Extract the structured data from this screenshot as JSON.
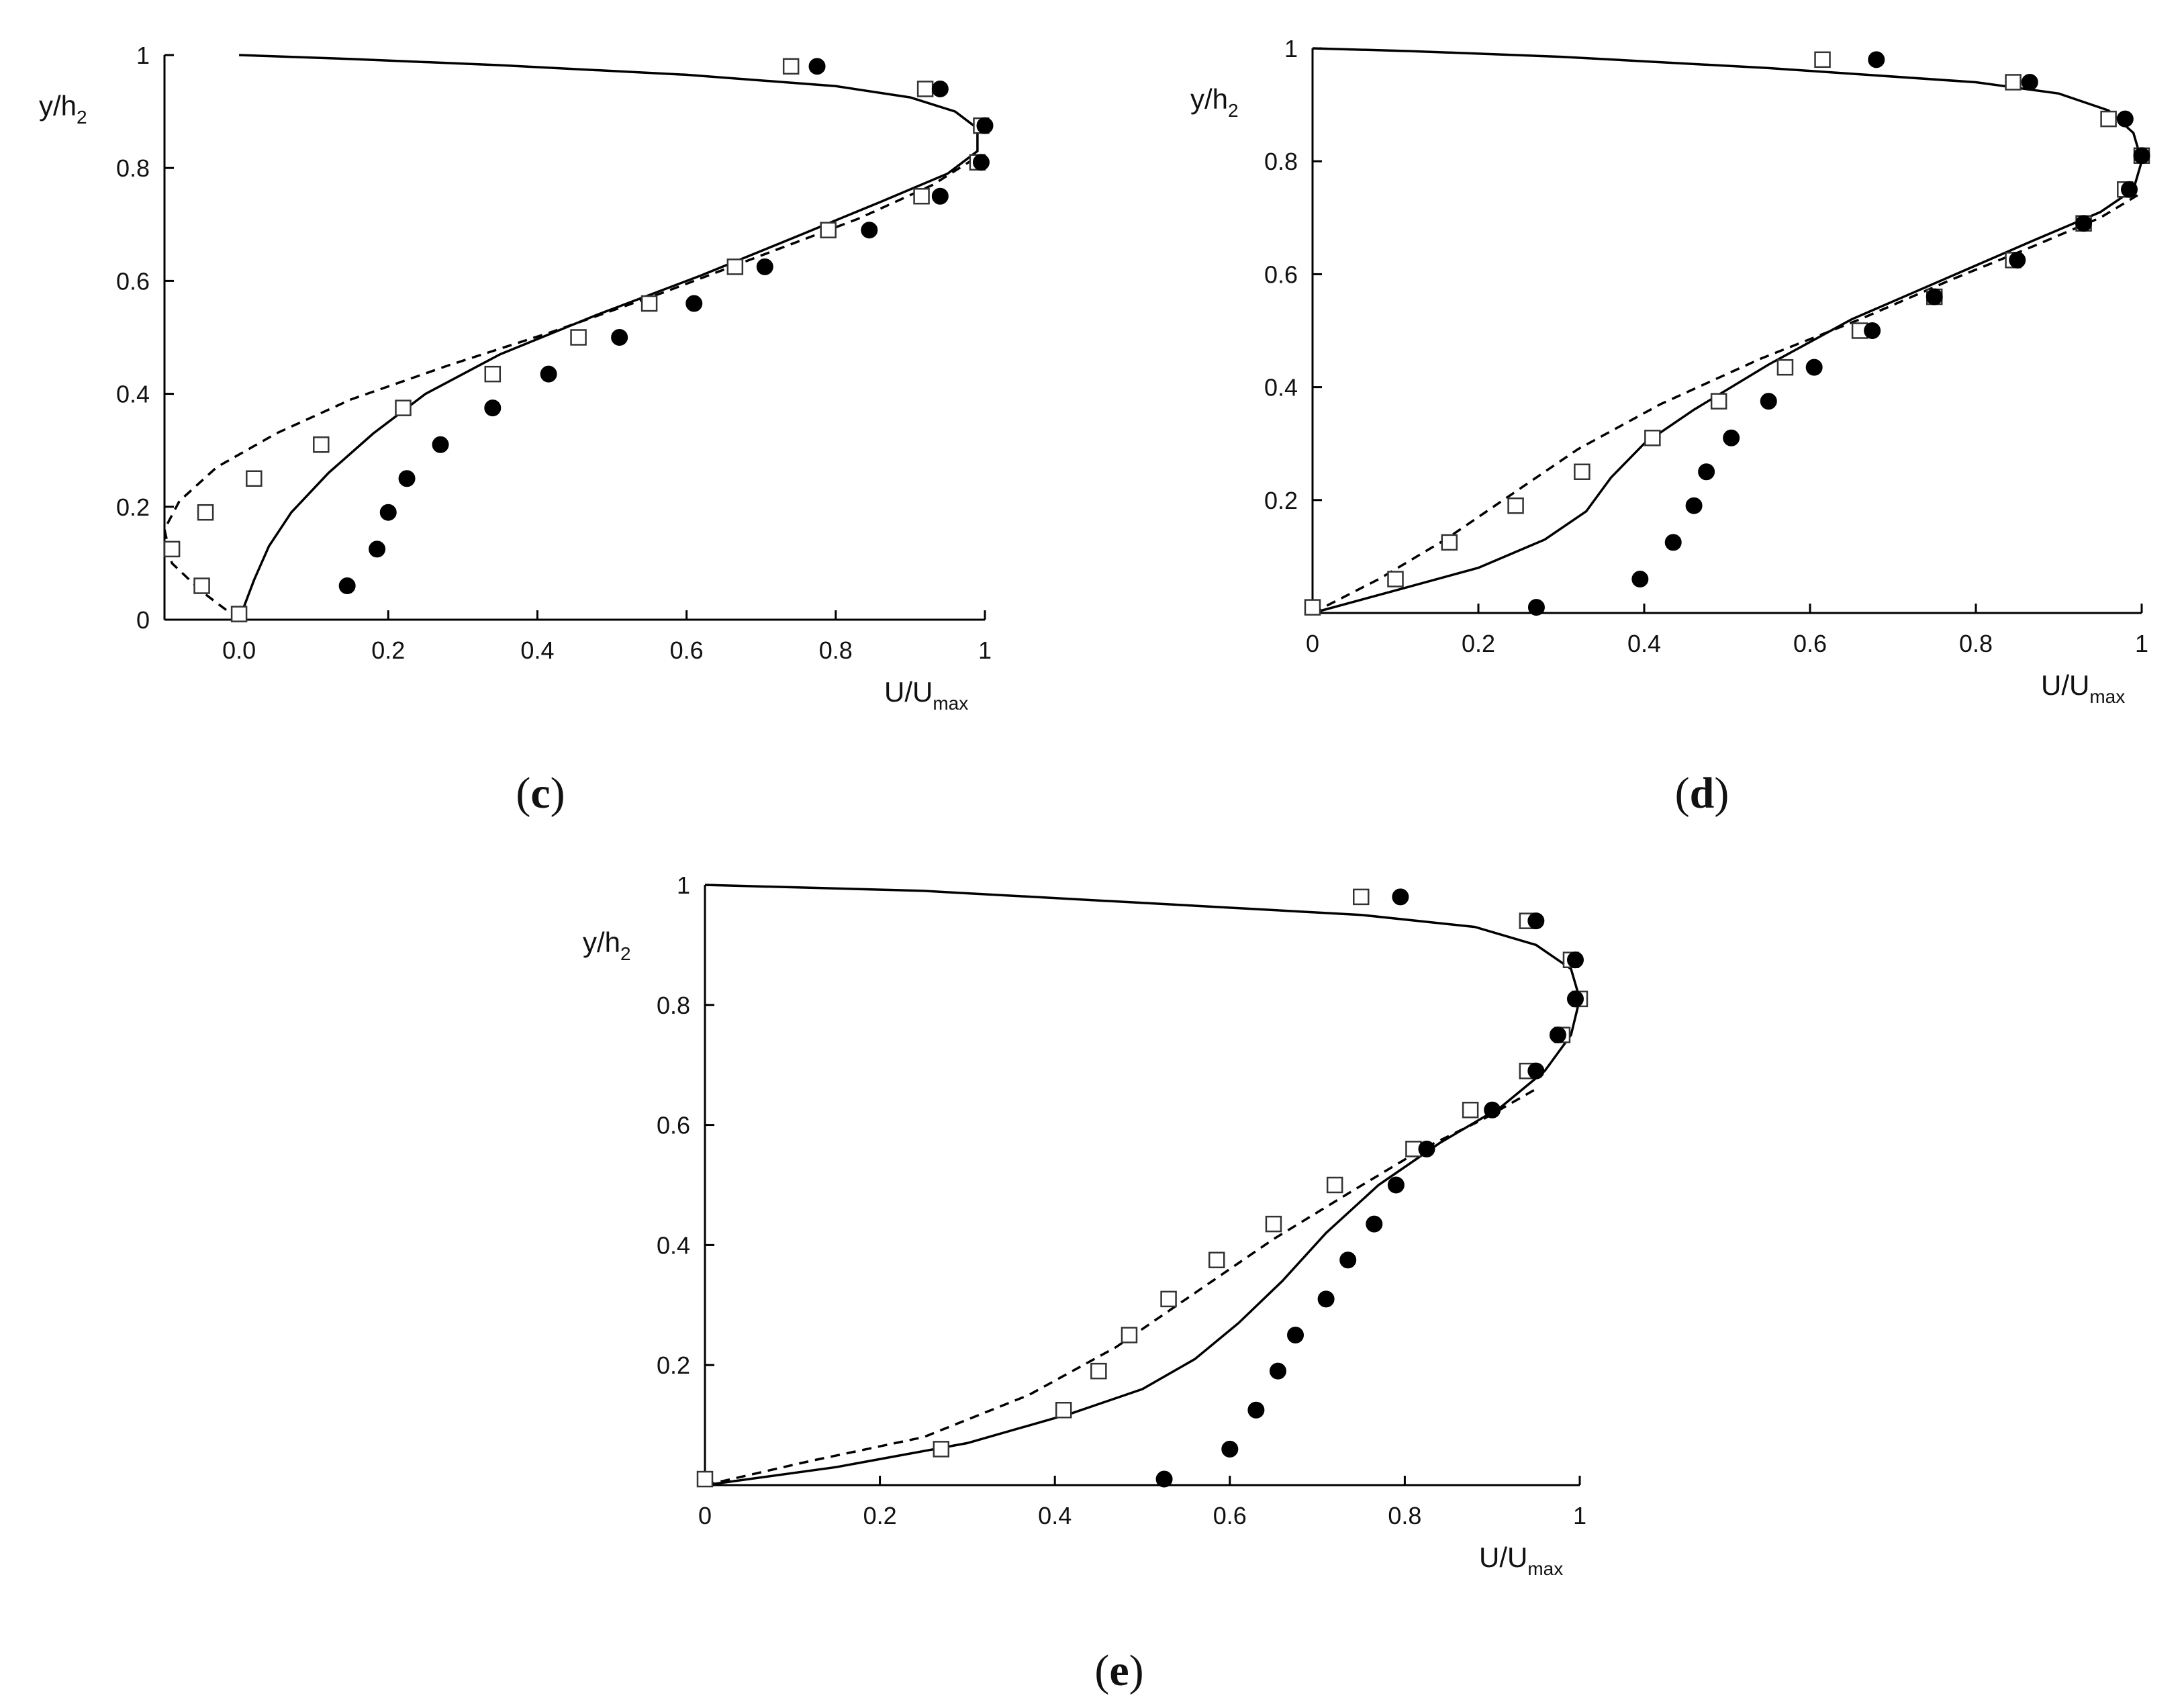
{
  "chart_data": [
    {
      "type": "line",
      "panel_label": "c",
      "xlabel": "U/U",
      "xlabel_sub": "max",
      "ylabel": "y/h",
      "ylabel_sub": "2",
      "xlim": [
        -0.1,
        1.0
      ],
      "ylim": [
        0,
        1.0
      ],
      "xticks": [
        {
          "v": 0.0,
          "t": "0.0"
        },
        {
          "v": 0.2,
          "t": "0.2"
        },
        {
          "v": 0.4,
          "t": "0.4"
        },
        {
          "v": 0.6,
          "t": "0.6"
        },
        {
          "v": 0.8,
          "t": "0.8"
        },
        {
          "v": 1.0,
          "t": "1"
        }
      ],
      "yticks": [
        {
          "v": 0,
          "t": "0"
        },
        {
          "v": 0.2,
          "t": "0.2"
        },
        {
          "v": 0.4,
          "t": "0.4"
        },
        {
          "v": 0.6,
          "t": "0.6"
        },
        {
          "v": 0.8,
          "t": "0.8"
        },
        {
          "v": 1.0,
          "t": "1"
        }
      ],
      "grid": false,
      "series": [
        {
          "style": "solid",
          "points": [
            [
              0.0,
              0.0
            ],
            [
              0.02,
              0.07
            ],
            [
              0.04,
              0.13
            ],
            [
              0.07,
              0.19
            ],
            [
              0.12,
              0.26
            ],
            [
              0.18,
              0.33
            ],
            [
              0.25,
              0.4
            ],
            [
              0.35,
              0.47
            ],
            [
              0.48,
              0.54
            ],
            [
              0.62,
              0.61
            ],
            [
              0.75,
              0.68
            ],
            [
              0.86,
              0.74
            ],
            [
              0.95,
              0.79
            ],
            [
              0.99,
              0.83
            ],
            [
              0.99,
              0.87
            ],
            [
              0.96,
              0.9
            ],
            [
              0.9,
              0.925
            ],
            [
              0.8,
              0.945
            ],
            [
              0.6,
              0.965
            ],
            [
              0.35,
              0.982
            ],
            [
              0.15,
              0.993
            ],
            [
              0.0,
              1.0
            ]
          ]
        },
        {
          "style": "dashed",
          "points": [
            [
              0.0,
              0.0
            ],
            [
              -0.05,
              0.05
            ],
            [
              -0.09,
              0.1
            ],
            [
              -0.1,
              0.16
            ],
            [
              -0.08,
              0.21
            ],
            [
              -0.03,
              0.27
            ],
            [
              0.05,
              0.33
            ],
            [
              0.15,
              0.39
            ],
            [
              0.28,
              0.45
            ],
            [
              0.42,
              0.51
            ],
            [
              0.57,
              0.58
            ],
            [
              0.71,
              0.65
            ],
            [
              0.83,
              0.71
            ],
            [
              0.93,
              0.77
            ],
            [
              0.99,
              0.82
            ]
          ]
        },
        {
          "style": "square",
          "points": [
            [
              0.0,
              0.01
            ],
            [
              -0.05,
              0.06
            ],
            [
              -0.09,
              0.125
            ],
            [
              -0.045,
              0.19
            ],
            [
              0.02,
              0.25
            ],
            [
              0.11,
              0.31
            ],
            [
              0.22,
              0.375
            ],
            [
              0.34,
              0.435
            ],
            [
              0.455,
              0.5
            ],
            [
              0.55,
              0.56
            ],
            [
              0.665,
              0.625
            ],
            [
              0.79,
              0.69
            ],
            [
              0.915,
              0.75
            ],
            [
              0.99,
              0.81
            ],
            [
              0.995,
              0.875
            ],
            [
              0.92,
              0.94
            ],
            [
              0.74,
              0.98
            ]
          ]
        },
        {
          "style": "circle",
          "points": [
            [
              0.145,
              0.06
            ],
            [
              0.185,
              0.125
            ],
            [
              0.2,
              0.19
            ],
            [
              0.225,
              0.25
            ],
            [
              0.27,
              0.31
            ],
            [
              0.34,
              0.375
            ],
            [
              0.415,
              0.435
            ],
            [
              0.51,
              0.5
            ],
            [
              0.61,
              0.56
            ],
            [
              0.705,
              0.625
            ],
            [
              0.845,
              0.69
            ],
            [
              0.94,
              0.75
            ],
            [
              0.995,
              0.81
            ],
            [
              1.0,
              0.875
            ],
            [
              0.94,
              0.94
            ],
            [
              0.775,
              0.98
            ]
          ]
        }
      ]
    },
    {
      "type": "line",
      "panel_label": "d",
      "xlabel": "U/U",
      "xlabel_sub": "max",
      "ylabel": "y/h",
      "ylabel_sub": "2",
      "xlim": [
        0,
        1.0
      ],
      "ylim": [
        0,
        1.0
      ],
      "xticks": [
        {
          "v": 0,
          "t": "0"
        },
        {
          "v": 0.2,
          "t": "0.2"
        },
        {
          "v": 0.4,
          "t": "0.4"
        },
        {
          "v": 0.6,
          "t": "0.6"
        },
        {
          "v": 0.8,
          "t": "0.8"
        },
        {
          "v": 1.0,
          "t": "1"
        }
      ],
      "yticks": [
        {
          "v": 0.2,
          "t": "0.2"
        },
        {
          "v": 0.4,
          "t": "0.4"
        },
        {
          "v": 0.6,
          "t": "0.6"
        },
        {
          "v": 0.8,
          "t": "0.8"
        },
        {
          "v": 1.0,
          "t": "1"
        }
      ],
      "grid": false,
      "series": [
        {
          "style": "solid",
          "points": [
            [
              0.0,
              0.0
            ],
            [
              0.1,
              0.04
            ],
            [
              0.2,
              0.08
            ],
            [
              0.28,
              0.13
            ],
            [
              0.33,
              0.18
            ],
            [
              0.36,
              0.24
            ],
            [
              0.4,
              0.3
            ],
            [
              0.46,
              0.36
            ],
            [
              0.55,
              0.44
            ],
            [
              0.65,
              0.52
            ],
            [
              0.76,
              0.59
            ],
            [
              0.87,
              0.66
            ],
            [
              0.95,
              0.71
            ],
            [
              0.99,
              0.75
            ],
            [
              1.0,
              0.8
            ],
            [
              0.99,
              0.85
            ],
            [
              0.96,
              0.89
            ],
            [
              0.9,
              0.92
            ],
            [
              0.8,
              0.94
            ],
            [
              0.55,
              0.965
            ],
            [
              0.3,
              0.985
            ],
            [
              0.12,
              0.995
            ],
            [
              0.0,
              1.0
            ]
          ]
        },
        {
          "style": "dashed",
          "points": [
            [
              0.0,
              0.0
            ],
            [
              0.08,
              0.06
            ],
            [
              0.16,
              0.13
            ],
            [
              0.24,
              0.21
            ],
            [
              0.32,
              0.29
            ],
            [
              0.42,
              0.37
            ],
            [
              0.54,
              0.45
            ],
            [
              0.66,
              0.52
            ],
            [
              0.77,
              0.59
            ],
            [
              0.87,
              0.65
            ],
            [
              0.95,
              0.7
            ],
            [
              0.995,
              0.74
            ]
          ]
        },
        {
          "style": "square",
          "points": [
            [
              0.0,
              0.01
            ],
            [
              0.1,
              0.06
            ],
            [
              0.165,
              0.125
            ],
            [
              0.245,
              0.19
            ],
            [
              0.325,
              0.25
            ],
            [
              0.41,
              0.31
            ],
            [
              0.49,
              0.375
            ],
            [
              0.57,
              0.435
            ],
            [
              0.66,
              0.5
            ],
            [
              0.75,
              0.56
            ],
            [
              0.845,
              0.625
            ],
            [
              0.93,
              0.69
            ],
            [
              0.98,
              0.75
            ],
            [
              1.0,
              0.81
            ],
            [
              0.96,
              0.875
            ],
            [
              0.845,
              0.94
            ],
            [
              0.615,
              0.98
            ]
          ]
        },
        {
          "style": "circle",
          "points": [
            [
              0.27,
              0.01
            ],
            [
              0.395,
              0.06
            ],
            [
              0.435,
              0.125
            ],
            [
              0.46,
              0.19
            ],
            [
              0.475,
              0.25
            ],
            [
              0.505,
              0.31
            ],
            [
              0.55,
              0.375
            ],
            [
              0.605,
              0.435
            ],
            [
              0.675,
              0.5
            ],
            [
              0.75,
              0.56
            ],
            [
              0.85,
              0.625
            ],
            [
              0.93,
              0.69
            ],
            [
              0.985,
              0.75
            ],
            [
              1.0,
              0.81
            ],
            [
              0.98,
              0.875
            ],
            [
              0.865,
              0.94
            ],
            [
              0.68,
              0.98
            ]
          ]
        }
      ]
    },
    {
      "type": "line",
      "panel_label": "e",
      "xlabel": "U/U",
      "xlabel_sub": "max",
      "ylabel": "y/h",
      "ylabel_sub": "2",
      "xlim": [
        0,
        1.0
      ],
      "ylim": [
        0,
        1.0
      ],
      "xticks": [
        {
          "v": 0,
          "t": "0"
        },
        {
          "v": 0.2,
          "t": "0.2"
        },
        {
          "v": 0.4,
          "t": "0.4"
        },
        {
          "v": 0.6,
          "t": "0.6"
        },
        {
          "v": 0.8,
          "t": "0.8"
        },
        {
          "v": 1.0,
          "t": "1"
        }
      ],
      "yticks": [
        {
          "v": 0.2,
          "t": "0.2"
        },
        {
          "v": 0.4,
          "t": "0.4"
        },
        {
          "v": 0.6,
          "t": "0.6"
        },
        {
          "v": 0.8,
          "t": "0.8"
        },
        {
          "v": 1.0,
          "t": "1"
        }
      ],
      "grid": false,
      "series": [
        {
          "style": "solid",
          "points": [
            [
              0.0,
              0.0
            ],
            [
              0.15,
              0.03
            ],
            [
              0.3,
              0.07
            ],
            [
              0.42,
              0.12
            ],
            [
              0.5,
              0.16
            ],
            [
              0.56,
              0.21
            ],
            [
              0.61,
              0.27
            ],
            [
              0.66,
              0.34
            ],
            [
              0.71,
              0.42
            ],
            [
              0.77,
              0.5
            ],
            [
              0.84,
              0.57
            ],
            [
              0.91,
              0.63
            ],
            [
              0.96,
              0.69
            ],
            [
              0.99,
              0.75
            ],
            [
              1.0,
              0.81
            ],
            [
              0.99,
              0.86
            ],
            [
              0.95,
              0.9
            ],
            [
              0.88,
              0.93
            ],
            [
              0.75,
              0.95
            ],
            [
              0.5,
              0.97
            ],
            [
              0.25,
              0.99
            ],
            [
              0.0,
              1.0
            ]
          ]
        },
        {
          "style": "dashed",
          "points": [
            [
              0.0,
              0.0
            ],
            [
              0.12,
              0.04
            ],
            [
              0.25,
              0.08
            ],
            [
              0.37,
              0.15
            ],
            [
              0.47,
              0.23
            ],
            [
              0.56,
              0.32
            ],
            [
              0.65,
              0.41
            ],
            [
              0.74,
              0.49
            ],
            [
              0.82,
              0.56
            ],
            [
              0.89,
              0.61
            ],
            [
              0.95,
              0.66
            ]
          ]
        },
        {
          "style": "square",
          "points": [
            [
              0.0,
              0.01
            ],
            [
              0.27,
              0.06
            ],
            [
              0.41,
              0.125
            ],
            [
              0.45,
              0.19
            ],
            [
              0.485,
              0.25
            ],
            [
              0.53,
              0.31
            ],
            [
              0.585,
              0.375
            ],
            [
              0.65,
              0.435
            ],
            [
              0.72,
              0.5
            ],
            [
              0.81,
              0.56
            ],
            [
              0.875,
              0.625
            ],
            [
              0.94,
              0.69
            ],
            [
              0.98,
              0.75
            ],
            [
              1.0,
              0.81
            ],
            [
              0.99,
              0.875
            ],
            [
              0.94,
              0.94
            ],
            [
              0.75,
              0.98
            ]
          ]
        },
        {
          "style": "circle",
          "points": [
            [
              0.525,
              0.01
            ],
            [
              0.6,
              0.06
            ],
            [
              0.63,
              0.125
            ],
            [
              0.655,
              0.19
            ],
            [
              0.675,
              0.25
            ],
            [
              0.71,
              0.31
            ],
            [
              0.735,
              0.375
            ],
            [
              0.765,
              0.435
            ],
            [
              0.79,
              0.5
            ],
            [
              0.825,
              0.56
            ],
            [
              0.9,
              0.625
            ],
            [
              0.95,
              0.69
            ],
            [
              0.975,
              0.75
            ],
            [
              0.995,
              0.81
            ],
            [
              0.995,
              0.875
            ],
            [
              0.95,
              0.94
            ],
            [
              0.795,
              0.98
            ]
          ]
        }
      ]
    }
  ]
}
